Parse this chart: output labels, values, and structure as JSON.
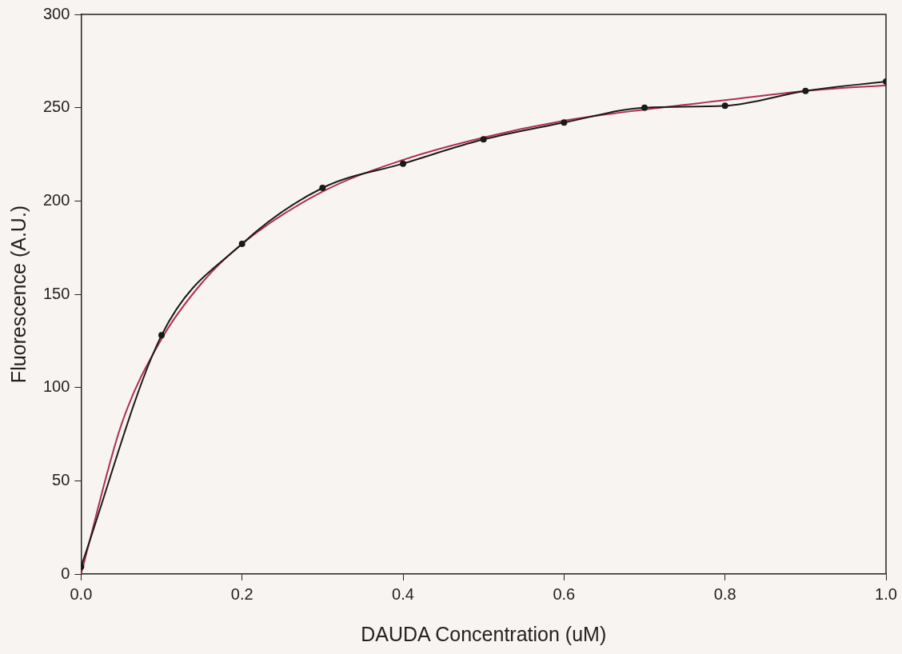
{
  "chart_data": {
    "type": "line",
    "xlabel": "DAUDA Concentration (uM)",
    "ylabel": "Fluorescence (A.U.)",
    "xlim": [
      0,
      1
    ],
    "xticks": [
      {
        "value": 0,
        "label": "0.0"
      },
      {
        "value": 0.2,
        "label": "0.2"
      },
      {
        "value": 0.4,
        "label": "0.4"
      },
      {
        "value": 0.6,
        "label": "0.6"
      },
      {
        "value": 0.8,
        "label": "0.8"
      },
      {
        "value": 1,
        "label": "1.0"
      }
    ],
    "ylim": [
      0,
      300
    ],
    "yticks": [
      0,
      50,
      100,
      150,
      200,
      250,
      300
    ],
    "grid": false,
    "legend": false,
    "series": [
      {
        "color": "#1a1a1a",
        "marker": "circle",
        "x": [
          0,
          0.1,
          0.2,
          0.3,
          0.4,
          0.5,
          0.6,
          0.7,
          0.8,
          0.9,
          1.0
        ],
        "values": [
          4,
          128,
          177,
          207,
          220,
          233,
          242,
          250,
          251,
          259,
          264
        ]
      },
      {
        "color": "#b03050",
        "marker": "none",
        "x": [
          0,
          0.05,
          0.1,
          0.15,
          0.2,
          0.3,
          0.4,
          0.5,
          0.6,
          0.7,
          0.8,
          0.9,
          1.0
        ],
        "values": [
          0,
          80,
          126,
          156,
          177,
          205,
          222,
          234,
          243,
          249,
          254,
          259,
          262
        ]
      }
    ]
  }
}
